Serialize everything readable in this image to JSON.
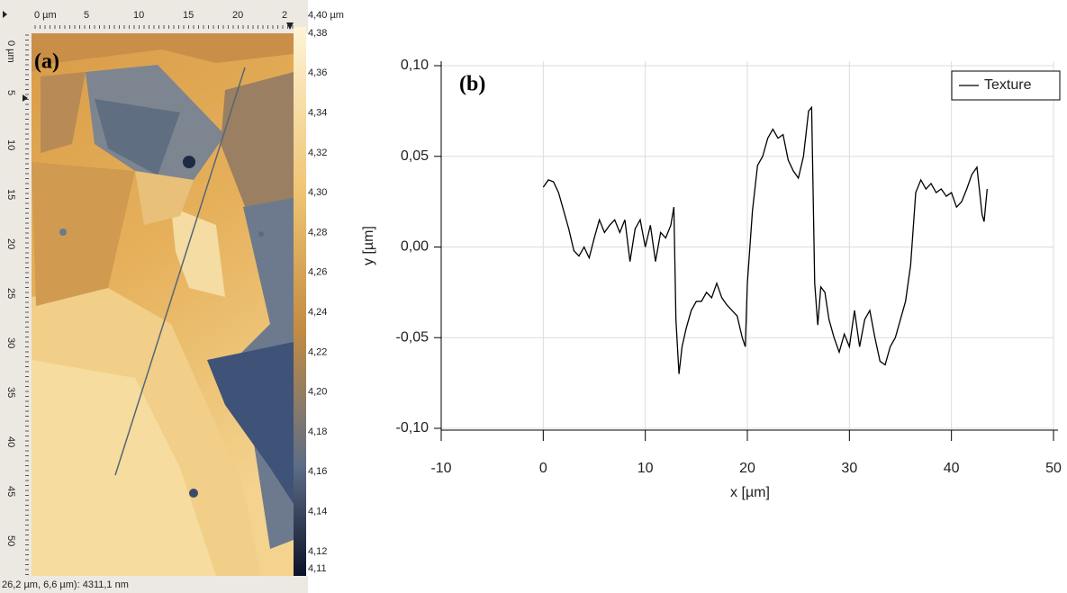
{
  "image_panel": {
    "label": "(a)",
    "top_ruler": [
      "0 µm",
      "5",
      "10",
      "15",
      "20",
      "2"
    ],
    "left_ruler": [
      "0 µm",
      "5",
      "10",
      "15",
      "20",
      "25",
      "30",
      "35",
      "40",
      "45",
      "50"
    ],
    "colorbar_labels": [
      "4,40 µm",
      "4,38",
      "4,36",
      "4,34",
      "4,32",
      "4,30",
      "4,28",
      "4,26",
      "4,24",
      "4,22",
      "4,20",
      "4,18",
      "4,16",
      "4,14",
      "4,12",
      "4,11"
    ],
    "status": "26,2 µm, 6,6 µm): 4311,1 nm"
  },
  "chart_data": {
    "type": "line",
    "panel_label": "(b)",
    "xlabel": "x [µm]",
    "ylabel": "y [µm]",
    "legend": "upper right",
    "grid": true,
    "xlim": [
      -10,
      50
    ],
    "xticks": [
      -10,
      0,
      10,
      20,
      30,
      40,
      50
    ],
    "ylim": [
      -0.1,
      0.1
    ],
    "yticks": [
      {
        "value": -0.1,
        "label": "-0,10"
      },
      {
        "value": -0.05,
        "label": "-0,05"
      },
      {
        "value": 0,
        "label": "0,00"
      },
      {
        "value": 0.05,
        "label": "0,05"
      },
      {
        "value": 0.1,
        "label": "0,10"
      }
    ],
    "x": [
      0,
      0.5,
      1,
      1.5,
      2,
      2.5,
      3,
      3.5,
      4,
      4.5,
      5,
      5.5,
      6,
      6.5,
      7,
      7.5,
      8,
      8.5,
      9,
      9.5,
      10,
      10.5,
      11,
      11.5,
      12,
      12.5,
      12.8,
      13,
      13.3,
      13.6,
      14,
      14.5,
      15,
      15.5,
      16,
      16.5,
      17,
      17.5,
      18,
      18.5,
      19,
      19.5,
      19.8,
      20,
      20.5,
      21,
      21.5,
      22,
      22.5,
      23,
      23.5,
      24,
      24.5,
      25,
      25.5,
      26,
      26.3,
      26.6,
      26.9,
      27.2,
      27.6,
      28,
      28.5,
      29,
      29.5,
      30,
      30.5,
      31,
      31.5,
      32,
      32.5,
      33,
      33.5,
      34,
      34.5,
      35,
      35.5,
      36,
      36.5,
      37,
      37.5,
      38,
      38.5,
      39,
      39.5,
      40,
      40.5,
      41,
      41.5,
      42,
      42.5,
      43,
      43.2,
      43.5
    ],
    "series": [
      {
        "name": "Texture",
        "color": "#000000",
        "values": [
          0.033,
          0.037,
          0.036,
          0.03,
          0.02,
          0.01,
          -0.002,
          -0.005,
          0,
          -0.006,
          0.005,
          0.015,
          0.008,
          0.012,
          0.015,
          0.008,
          0.015,
          -0.008,
          0.01,
          0.015,
          0,
          0.012,
          -0.008,
          0.008,
          0.005,
          0.012,
          0.022,
          -0.04,
          -0.07,
          -0.055,
          -0.045,
          -0.035,
          -0.03,
          -0.03,
          -0.025,
          -0.028,
          -0.02,
          -0.028,
          -0.032,
          -0.035,
          -0.038,
          -0.05,
          -0.055,
          -0.02,
          0.02,
          0.045,
          0.05,
          0.06,
          0.065,
          0.06,
          0.062,
          0.048,
          0.042,
          0.038,
          0.05,
          0.075,
          0.077,
          -0.02,
          -0.043,
          -0.022,
          -0.025,
          -0.04,
          -0.05,
          -0.058,
          -0.048,
          -0.055,
          -0.035,
          -0.055,
          -0.04,
          -0.035,
          -0.05,
          -0.063,
          -0.065,
          -0.055,
          -0.05,
          -0.04,
          -0.03,
          -0.01,
          0.03,
          0.037,
          0.032,
          0.035,
          0.03,
          0.032,
          0.028,
          0.03,
          0.022,
          0.025,
          0.032,
          0.04,
          0.044,
          0.018,
          0.014,
          0.032
        ]
      }
    ]
  }
}
